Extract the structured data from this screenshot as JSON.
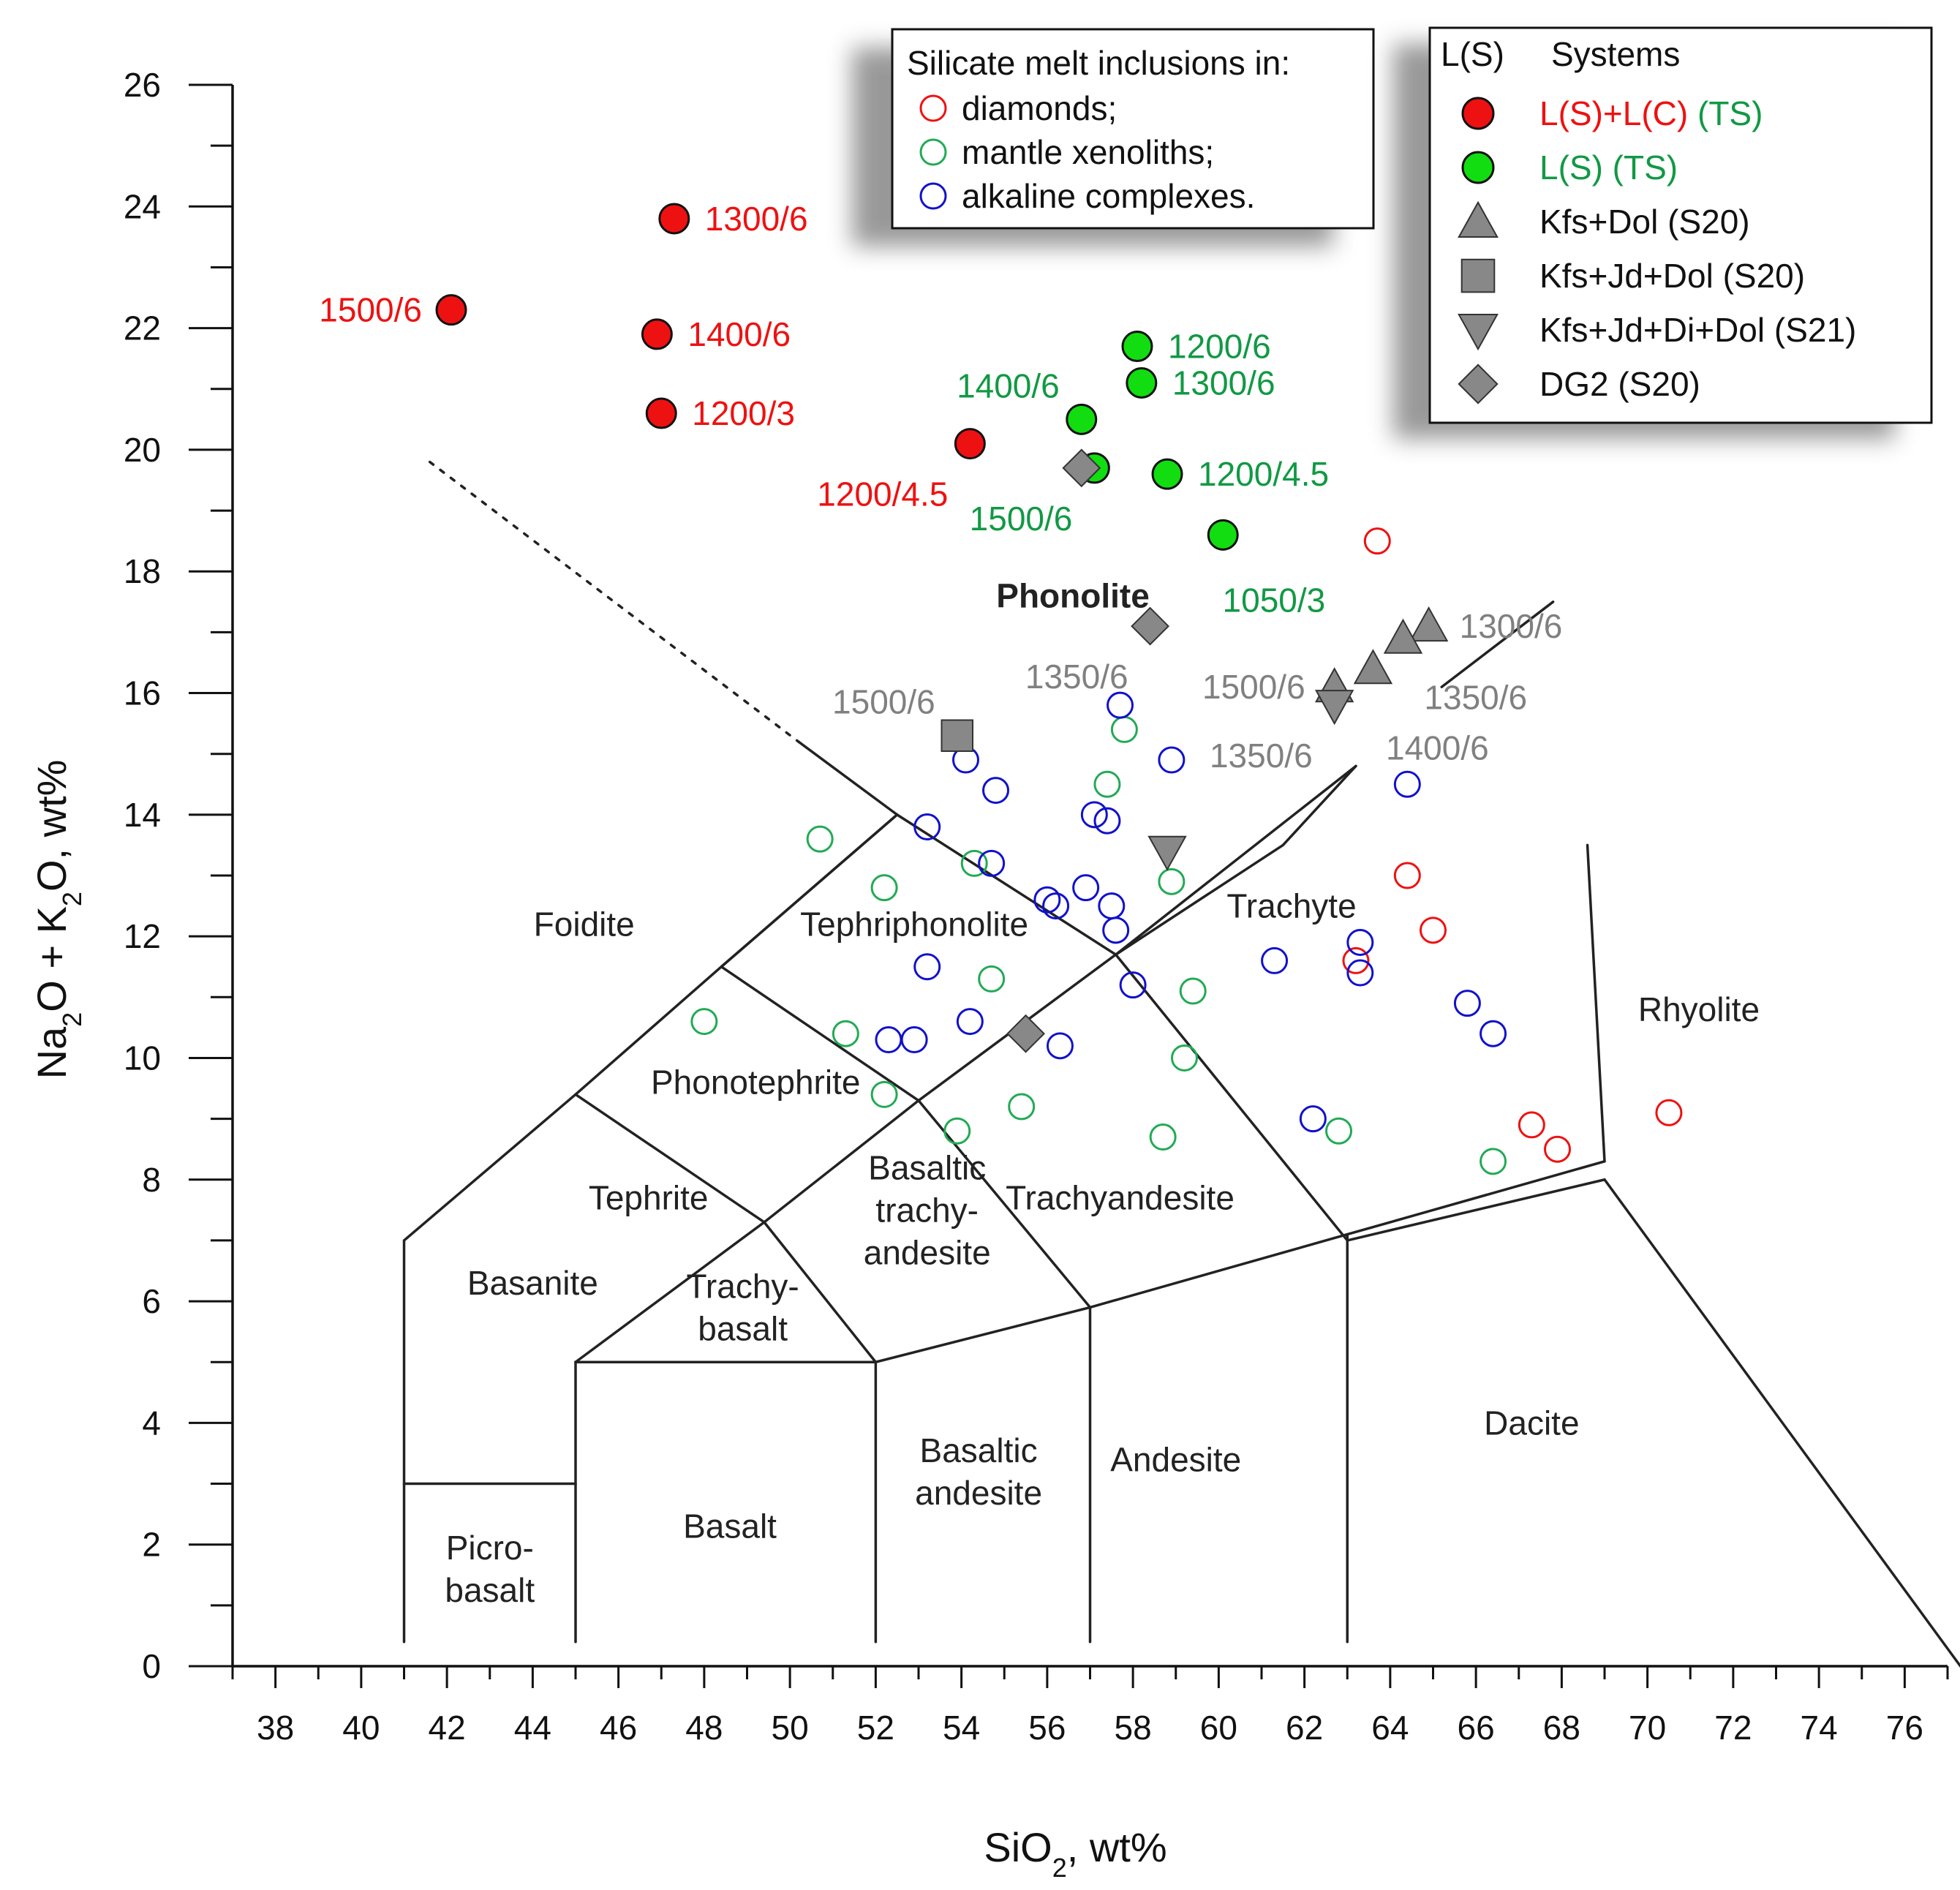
{
  "chart_data": {
    "type": "scatter",
    "title": "",
    "xlabel": "SiO₂, wt%",
    "ylabel": "Na₂O + K₂O, wt%",
    "xlim": [
      37,
      77
    ],
    "ylim": [
      0,
      26
    ],
    "xticks": [
      38,
      40,
      42,
      44,
      46,
      48,
      50,
      52,
      54,
      56,
      58,
      60,
      62,
      64,
      66,
      68,
      70,
      72,
      74,
      76
    ],
    "yticks": [
      0,
      2,
      4,
      6,
      8,
      10,
      12,
      14,
      16,
      18,
      20,
      22,
      24,
      26
    ],
    "grid": false,
    "colors": {
      "red": "#ee1111",
      "green": "#22aa55",
      "bright_green": "#11dd11",
      "blue": "#1111cc",
      "gray": "#888888",
      "gray_text": "#808080",
      "ts_green": "#119944",
      "lines": "#222222"
    },
    "fields": [
      {
        "name": "Foidite",
        "label_lines": [
          "Foidite"
        ],
        "x": 45.2,
        "y": 12.2
      },
      {
        "name": "Phonolite",
        "label_lines": [
          "Phonolite"
        ],
        "x": 56.6,
        "y": 17.6,
        "bold": true
      },
      {
        "name": "Tephriphonolite",
        "label_lines": [
          "Tephriphonolite"
        ],
        "x": 52.9,
        "y": 12.2
      },
      {
        "name": "Trachyte",
        "label_lines": [
          "Trachyte"
        ],
        "x": 61.7,
        "y": 12.5
      },
      {
        "name": "Phonotephrite",
        "label_lines": [
          "Phonotephrite"
        ],
        "x": 49.2,
        "y": 9.6
      },
      {
        "name": "Tephrite",
        "label_lines": [
          "Tephrite"
        ],
        "x": 46.7,
        "y": 7.7
      },
      {
        "name": "Basanite",
        "label_lines": [
          "Basanite"
        ],
        "x": 44.0,
        "y": 6.3
      },
      {
        "name": "Trachybasalt",
        "label_lines": [
          "Trachy-",
          "basalt"
        ],
        "x": 48.9,
        "y": 5.9
      },
      {
        "name": "Basaltic trachyandesite",
        "label_lines": [
          "Basaltic",
          "trachy-",
          "andesite"
        ],
        "x": 53.2,
        "y": 7.5
      },
      {
        "name": "Trachyandesite",
        "label_lines": [
          "Trachyandesite"
        ],
        "x": 57.7,
        "y": 7.7
      },
      {
        "name": "Rhyolite",
        "label_lines": [
          "Rhyolite"
        ],
        "x": 71.2,
        "y": 10.8
      },
      {
        "name": "Dacite",
        "label_lines": [
          "Dacite"
        ],
        "x": 67.3,
        "y": 4.0
      },
      {
        "name": "Andesite",
        "label_lines": [
          "Andesite"
        ],
        "x": 59.0,
        "y": 3.4
      },
      {
        "name": "Basaltic andesite",
        "label_lines": [
          "Basaltic",
          "andesite"
        ],
        "x": 54.4,
        "y": 3.2
      },
      {
        "name": "Basalt",
        "label_lines": [
          "Basalt"
        ],
        "x": 48.6,
        "y": 2.3
      },
      {
        "name": "Picrobasalt",
        "label_lines": [
          "Picro-",
          "basalt"
        ],
        "x": 43.0,
        "y": 1.6
      }
    ],
    "boundaries": [
      [
        [
          41,
          0.4
        ],
        [
          41,
          7
        ],
        [
          45,
          9.4
        ],
        [
          48.4,
          11.5
        ],
        [
          52.5,
          14
        ],
        [
          57.6,
          11.7
        ],
        [
          63,
          7
        ],
        [
          69,
          8
        ],
        [
          77.3,
          0
        ]
      ],
      [
        [
          41,
          3
        ],
        [
          45,
          3
        ]
      ],
      [
        [
          45,
          0.4
        ],
        [
          45,
          5
        ],
        [
          52,
          5
        ],
        [
          57,
          5.9
        ],
        [
          63,
          7.1
        ],
        [
          69,
          8.3
        ]
      ],
      [
        [
          52,
          0.4
        ],
        [
          52,
          5
        ]
      ],
      [
        [
          57,
          0.4
        ],
        [
          57,
          5.9
        ]
      ],
      [
        [
          63,
          0.4
        ],
        [
          63,
          7.1
        ]
      ],
      [
        [
          45,
          5
        ],
        [
          49.4,
          7.3
        ],
        [
          53,
          9.3
        ],
        [
          57.6,
          11.7
        ],
        [
          61.5,
          13.5
        ],
        [
          63.2,
          14.8
        ]
      ],
      [
        [
          45,
          9.4
        ],
        [
          49.4,
          7.3
        ],
        [
          52,
          5
        ]
      ],
      [
        [
          48.4,
          11.5
        ],
        [
          53,
          9.3
        ],
        [
          57,
          5.9
        ]
      ],
      [
        [
          52.5,
          14
        ],
        [
          48.4,
          11.5
        ]
      ],
      [
        [
          50.2,
          15.2
        ],
        [
          52.5,
          14
        ]
      ],
      [
        [
          57.6,
          11.7
        ],
        [
          63.2,
          14.8
        ]
      ],
      [
        [
          69,
          8.3
        ],
        [
          68.6,
          13.5
        ]
      ],
      [
        [
          65.2,
          16.1
        ],
        [
          67.8,
          17.5
        ]
      ],
      [
        [
          41.6,
          19.8
        ],
        [
          50.2,
          15.2
        ]
      ]
    ],
    "dotted_boundary": [
      [
        41.6,
        19.8
      ],
      [
        50.2,
        15.2
      ]
    ],
    "series": [
      {
        "name": "diamonds;",
        "marker": "open-circle",
        "color": "#ee1111",
        "points": [
          [
            63.7,
            18.5
          ],
          [
            64.4,
            13.0
          ],
          [
            65.0,
            12.1
          ],
          [
            63.2,
            11.6
          ],
          [
            70.5,
            9.1
          ],
          [
            67.3,
            8.9
          ],
          [
            67.9,
            8.5
          ]
        ]
      },
      {
        "name": "mantle xenoliths;",
        "marker": "open-circle",
        "color": "#22aa55",
        "points": [
          [
            50.7,
            13.6
          ],
          [
            52.2,
            12.8
          ],
          [
            54.3,
            13.2
          ],
          [
            57.8,
            15.4
          ],
          [
            57.4,
            14.5
          ],
          [
            58.9,
            12.9
          ],
          [
            54.7,
            11.3
          ],
          [
            48.0,
            10.6
          ],
          [
            51.3,
            10.4
          ],
          [
            59.4,
            11.1
          ],
          [
            55.4,
            9.2
          ],
          [
            52.2,
            9.4
          ],
          [
            53.9,
            8.8
          ],
          [
            59.2,
            10.0
          ],
          [
            58.7,
            8.7
          ],
          [
            62.8,
            8.8
          ],
          [
            66.4,
            8.3
          ]
        ]
      },
      {
        "name": "alkaline complexes.",
        "marker": "open-circle",
        "color": "#1111cc",
        "points": [
          [
            57.7,
            15.8
          ],
          [
            58.9,
            14.9
          ],
          [
            54.1,
            14.9
          ],
          [
            54.8,
            14.4
          ],
          [
            53.2,
            13.8
          ],
          [
            57.1,
            14.0
          ],
          [
            57.4,
            13.9
          ],
          [
            54.7,
            13.2
          ],
          [
            56.0,
            12.6
          ],
          [
            56.2,
            12.5
          ],
          [
            56.9,
            12.8
          ],
          [
            57.5,
            12.5
          ],
          [
            57.6,
            12.1
          ],
          [
            53.2,
            11.5
          ],
          [
            58.0,
            11.2
          ],
          [
            61.3,
            11.6
          ],
          [
            63.3,
            11.9
          ],
          [
            63.3,
            11.4
          ],
          [
            64.4,
            14.5
          ],
          [
            54.2,
            10.6
          ],
          [
            52.3,
            10.3
          ],
          [
            52.9,
            10.3
          ],
          [
            56.3,
            10.2
          ],
          [
            62.2,
            9.0
          ],
          [
            65.8,
            10.9
          ],
          [
            66.4,
            10.4
          ]
        ]
      },
      {
        "name": "L(S)+L(C) (TS)",
        "marker": "filled-circle",
        "color": "#ee1111",
        "points": [
          {
            "x": 42.1,
            "y": 22.3,
            "label": "1500/6",
            "label_pos": "left"
          },
          {
            "x": 47.3,
            "y": 23.8,
            "label": "1300/6",
            "label_pos": "right"
          },
          {
            "x": 46.9,
            "y": 21.9,
            "label": "1400/6",
            "label_pos": "right"
          },
          {
            "x": 47.0,
            "y": 20.6,
            "label": "1200/3",
            "label_pos": "right"
          },
          {
            "x": 54.2,
            "y": 20.1,
            "label": "1200/4.5",
            "label_pos": "below-left"
          }
        ]
      },
      {
        "name": "L(S) (TS)",
        "marker": "filled-circle",
        "color": "#11dd11",
        "points": [
          {
            "x": 58.1,
            "y": 21.7,
            "label": "1200/6",
            "label_pos": "right"
          },
          {
            "x": 58.2,
            "y": 21.1,
            "label": "1300/6",
            "label_pos": "right"
          },
          {
            "x": 56.8,
            "y": 20.5,
            "label": "1400/6",
            "label_pos": "above-left"
          },
          {
            "x": 57.1,
            "y": 19.7,
            "label": "1500/6",
            "label_pos": "below-left"
          },
          {
            "x": 58.8,
            "y": 19.6,
            "label": "1200/4.5",
            "label_pos": "right"
          },
          {
            "x": 60.1,
            "y": 18.6,
            "label": "1050/3",
            "label_pos": "below"
          }
        ]
      },
      {
        "name": "Kfs+Dol (S20)",
        "marker": "triangle-up",
        "color": "#888888",
        "points": [
          {
            "x": 64.9,
            "y": 17.1,
            "label": "1300/6",
            "label_pos": "right"
          },
          {
            "x": 64.3,
            "y": 16.9,
            "label": "",
            "label_pos": ""
          },
          {
            "x": 63.6,
            "y": 16.4,
            "label": "1350/6",
            "label_pos": "below-right"
          },
          {
            "x": 62.7,
            "y": 16.1,
            "label": "1500/6",
            "label_pos": "left"
          }
        ]
      },
      {
        "name": "Kfs+Jd+Dol (S20)",
        "marker": "square",
        "color": "#888888",
        "points": [
          {
            "x": 53.9,
            "y": 15.3,
            "label": "1500/6",
            "label_pos": "above-left"
          }
        ]
      },
      {
        "name": "Kfs+Jd+Di+Dol (S21)",
        "marker": "triangle-down",
        "color": "#888888",
        "points": [
          {
            "x": 62.7,
            "y": 15.8,
            "label": "1350/6",
            "label_pos": "below-left"
          },
          {
            "x": 58.8,
            "y": 13.4,
            "label": "",
            "label_pos": ""
          }
        ]
      },
      {
        "name": "DG2 (S20)",
        "marker": "diamond",
        "color": "#888888",
        "points": [
          {
            "x": 58.4,
            "y": 17.1,
            "label": "1350/6",
            "label_pos": "below-left"
          },
          {
            "x": 56.8,
            "y": 19.7,
            "label": "",
            "label_pos": ""
          },
          {
            "x": 55.5,
            "y": 10.4,
            "label": "",
            "label_pos": ""
          }
        ]
      }
    ],
    "extra_labels": [
      {
        "text": "1400/6",
        "x": 63.9,
        "y": 15.1,
        "color": "#808080"
      }
    ],
    "legend_inclusions": {
      "title": "Silicate melt inclusions in:",
      "placement": "top-center",
      "items": [
        {
          "label": "diamonds;",
          "color": "#ee1111"
        },
        {
          "label": "mantle xenoliths;",
          "color": "#22aa55"
        },
        {
          "label": "alkaline complexes.",
          "color": "#1111cc"
        }
      ]
    },
    "legend_systems": {
      "header_left": "L(S)",
      "header_right": "Systems",
      "placement": "top-right",
      "items": [
        {
          "marker": "filled-circle",
          "color": "#ee1111",
          "label_parts": [
            {
              "text": "L(S)+L(C)",
              "color": "#ee1111"
            },
            {
              "text": " (TS)",
              "color": "#119944"
            }
          ]
        },
        {
          "marker": "filled-circle",
          "color": "#11dd11",
          "label_parts": [
            {
              "text": "L(S) (TS)",
              "color": "#119944"
            }
          ]
        },
        {
          "marker": "triangle-up",
          "color": "#888888",
          "label_parts": [
            {
              "text": "Kfs+Dol (S20)",
              "color": "#111111"
            }
          ]
        },
        {
          "marker": "square",
          "color": "#888888",
          "label_parts": [
            {
              "text": "Kfs+Jd+Dol (S20)",
              "color": "#111111"
            }
          ]
        },
        {
          "marker": "triangle-down",
          "color": "#888888",
          "label_parts": [
            {
              "text": "Kfs+Jd+Di+Dol (S21)",
              "color": "#111111"
            }
          ]
        },
        {
          "marker": "diamond",
          "color": "#888888",
          "label_parts": [
            {
              "text": "DG2 (S20)",
              "color": "#111111"
            }
          ]
        }
      ]
    }
  }
}
